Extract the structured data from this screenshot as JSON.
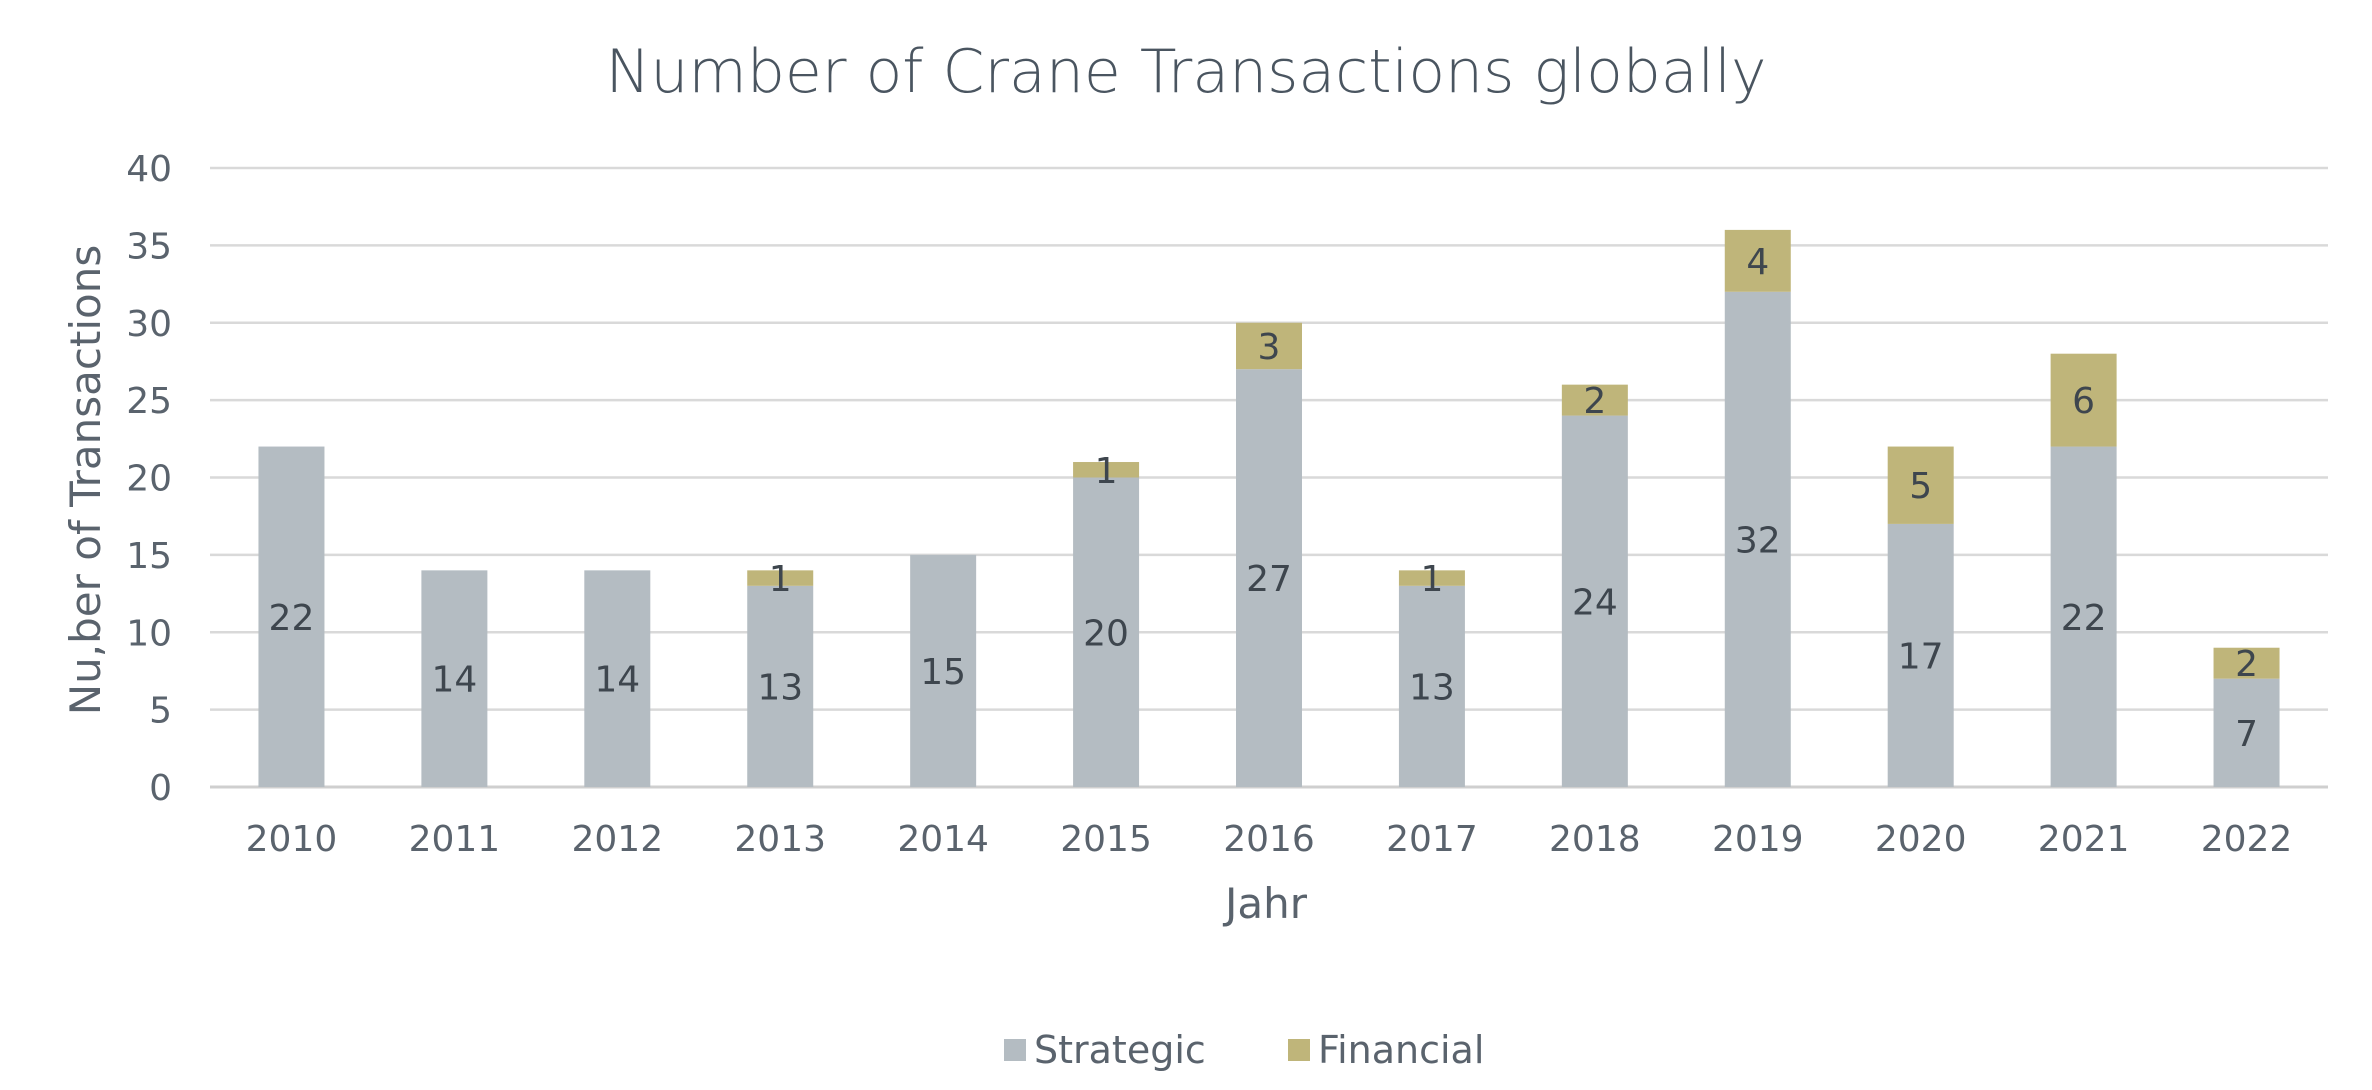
{
  "chart_data": {
    "type": "bar",
    "stacked": true,
    "title": "Number of Crane Transactions globally",
    "xlabel": "Jahr",
    "ylabel": "Nu,ber of Transactions",
    "ylim": [
      0,
      40
    ],
    "yticks": [
      0,
      5,
      10,
      15,
      20,
      25,
      30,
      35,
      40
    ],
    "grid": true,
    "legend_position": "bottom",
    "categories": [
      "2010",
      "2011",
      "2012",
      "2013",
      "2014",
      "2015",
      "2016",
      "2017",
      "2018",
      "2019",
      "2020",
      "2021",
      "2022"
    ],
    "series": [
      {
        "name": "Strategic",
        "color": "#b4bcc2",
        "values": [
          22,
          14,
          14,
          13,
          15,
          20,
          27,
          13,
          24,
          32,
          17,
          22,
          7
        ]
      },
      {
        "name": "Financial",
        "color": "#bfb57a",
        "values": [
          0,
          0,
          0,
          1,
          0,
          1,
          3,
          1,
          2,
          4,
          5,
          6,
          2
        ]
      }
    ]
  }
}
